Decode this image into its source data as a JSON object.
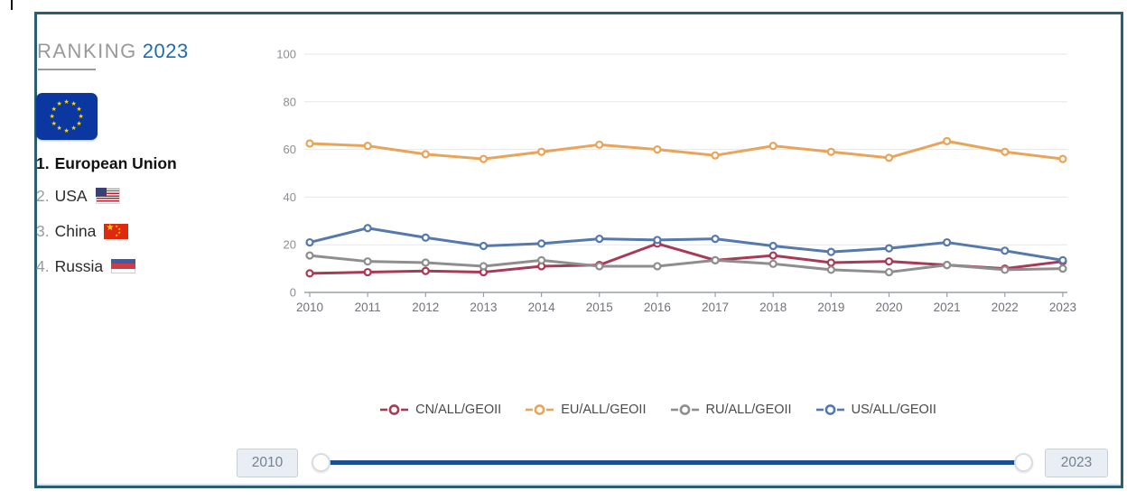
{
  "sidebar": {
    "title_label": "RANKING",
    "title_year": "2023",
    "ranking": [
      {
        "rank": "1.",
        "name": "European Union",
        "flag": "eu-flag"
      },
      {
        "rank": "2.",
        "name": "USA",
        "flag": "us-flag"
      },
      {
        "rank": "3.",
        "name": "China",
        "flag": "cn-flag"
      },
      {
        "rank": "4.",
        "name": "Russia",
        "flag": "ru-flag"
      }
    ]
  },
  "chart_data": {
    "type": "line",
    "x": [
      "2010",
      "2011",
      "2012",
      "2013",
      "2014",
      "2015",
      "2016",
      "2017",
      "2018",
      "2019",
      "2020",
      "2021",
      "2022",
      "2023"
    ],
    "series": [
      {
        "name": "CN/ALL/GEOII",
        "color": "#a93a55",
        "values": [
          8,
          8.5,
          9,
          8.5,
          11,
          11.5,
          20.5,
          13.5,
          15.5,
          12.5,
          13,
          11.5,
          10,
          13
        ]
      },
      {
        "name": "EU/ALL/GEOII",
        "color": "#e9a45b",
        "values": [
          62.5,
          61.5,
          58,
          56,
          59,
          62,
          60,
          57.5,
          61.5,
          59,
          56.5,
          63.5,
          59,
          56
        ]
      },
      {
        "name": "RU/ALL/GEOII",
        "color": "#8e8e8e",
        "values": [
          15.5,
          13,
          12.5,
          11,
          13.5,
          11,
          11,
          13.5,
          12,
          9.5,
          8.5,
          11.5,
          9.5,
          10
        ]
      },
      {
        "name": "US/ALL/GEOII",
        "color": "#5578ad",
        "values": [
          21,
          27,
          23,
          19.5,
          20.5,
          22.5,
          22,
          22.5,
          19.5,
          17,
          18.5,
          21,
          17.5,
          13.5
        ]
      }
    ],
    "title": "",
    "xlabel": "",
    "ylabel": "",
    "ylim": [
      0,
      100
    ],
    "yticks": [
      0,
      20,
      40,
      60,
      80,
      100
    ],
    "grid": true,
    "legend_position": "bottom"
  },
  "slider": {
    "min_label": "2010",
    "max_label": "2023",
    "track_color": "#1a5091"
  },
  "colors": {
    "panel_border": "#2b5f6f",
    "title_year_blue": "#1d6cb4",
    "axis_label": "#8d8d95"
  }
}
